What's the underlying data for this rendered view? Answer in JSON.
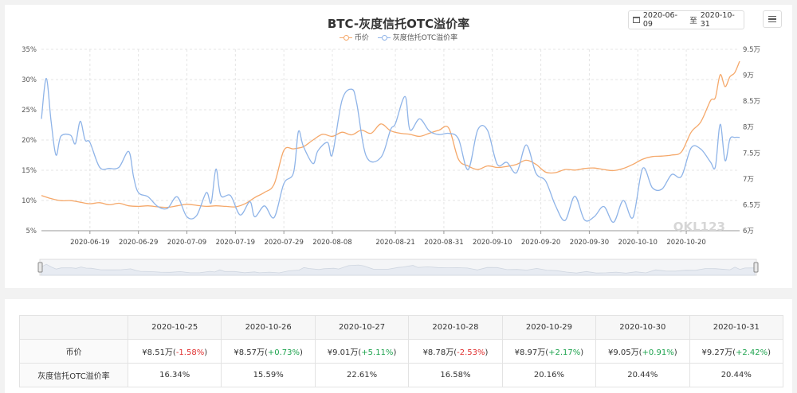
{
  "chart_data": {
    "type": "line",
    "title": "BTC-灰度信托OTC溢价率",
    "date_range": {
      "start": "2020-06-09",
      "separator": "至",
      "end": "2020-10-31"
    },
    "x_ticks": [
      "2020-06-19",
      "2020-06-29",
      "2020-07-09",
      "2020-07-19",
      "2020-07-29",
      "2020-08-08",
      "2020-08-21",
      "2020-08-31",
      "2020-09-10",
      "2020-09-20",
      "2020-09-30",
      "2020-10-10",
      "2020-10-20"
    ],
    "x_range": [
      "2020-06-09",
      "2020-10-31"
    ],
    "y_left": {
      "ticks": [
        "35%",
        "30%",
        "25%",
        "20%",
        "15%",
        "10%",
        "5%"
      ],
      "range": [
        5,
        35
      ],
      "unit": "%"
    },
    "y_right": {
      "ticks": [
        "9.5万",
        "9万",
        "8.5万",
        "8万",
        "7.5万",
        "7万",
        "6.5万",
        "6万"
      ],
      "range": [
        60000,
        95000
      ]
    },
    "grid": true,
    "legend_position": "top",
    "series": [
      {
        "name": "币价",
        "axis": "right",
        "color": "#f5a86a",
        "values": [
          [
            "2020-06-09",
            66800
          ],
          [
            "2020-06-11",
            66200
          ],
          [
            "2020-06-13",
            65800
          ],
          [
            "2020-06-15",
            65800
          ],
          [
            "2020-06-17",
            65500
          ],
          [
            "2020-06-19",
            65200
          ],
          [
            "2020-06-21",
            65400
          ],
          [
            "2020-06-23",
            65000
          ],
          [
            "2020-06-25",
            65300
          ],
          [
            "2020-06-27",
            64800
          ],
          [
            "2020-06-29",
            64700
          ],
          [
            "2020-07-01",
            64800
          ],
          [
            "2020-07-03",
            64600
          ],
          [
            "2020-07-05",
            64500
          ],
          [
            "2020-07-07",
            64800
          ],
          [
            "2020-07-09",
            65100
          ],
          [
            "2020-07-11",
            64900
          ],
          [
            "2020-07-13",
            64700
          ],
          [
            "2020-07-15",
            64800
          ],
          [
            "2020-07-17",
            64700
          ],
          [
            "2020-07-19",
            64600
          ],
          [
            "2020-07-21",
            65200
          ],
          [
            "2020-07-23",
            66400
          ],
          [
            "2020-07-25",
            67400
          ],
          [
            "2020-07-27",
            69000
          ],
          [
            "2020-07-29",
            75500
          ],
          [
            "2020-07-31",
            75800
          ],
          [
            "2020-08-02",
            76200
          ],
          [
            "2020-08-04",
            77500
          ],
          [
            "2020-08-06",
            78600
          ],
          [
            "2020-08-08",
            78200
          ],
          [
            "2020-08-10",
            79000
          ],
          [
            "2020-08-12",
            78500
          ],
          [
            "2020-08-14",
            79400
          ],
          [
            "2020-08-16",
            78800
          ],
          [
            "2020-08-18",
            80600
          ],
          [
            "2020-08-20",
            79300
          ],
          [
            "2020-08-22",
            78800
          ],
          [
            "2020-08-24",
            78600
          ],
          [
            "2020-08-26",
            78200
          ],
          [
            "2020-08-28",
            78800
          ],
          [
            "2020-08-30",
            79400
          ],
          [
            "2020-09-01",
            79800
          ],
          [
            "2020-09-03",
            73800
          ],
          [
            "2020-09-05",
            72500
          ],
          [
            "2020-09-07",
            71800
          ],
          [
            "2020-09-09",
            72500
          ],
          [
            "2020-09-11",
            72200
          ],
          [
            "2020-09-13",
            72400
          ],
          [
            "2020-09-15",
            72800
          ],
          [
            "2020-09-17",
            73600
          ],
          [
            "2020-09-19",
            72800
          ],
          [
            "2020-09-21",
            71300
          ],
          [
            "2020-09-23",
            71200
          ],
          [
            "2020-09-25",
            71800
          ],
          [
            "2020-09-27",
            71700
          ],
          [
            "2020-09-29",
            72000
          ],
          [
            "2020-10-01",
            72100
          ],
          [
            "2020-10-03",
            71800
          ],
          [
            "2020-10-05",
            71600
          ],
          [
            "2020-10-07",
            72000
          ],
          [
            "2020-10-09",
            72800
          ],
          [
            "2020-10-11",
            73800
          ],
          [
            "2020-10-13",
            74300
          ],
          [
            "2020-10-15",
            74400
          ],
          [
            "2020-10-17",
            74600
          ],
          [
            "2020-10-19",
            75200
          ],
          [
            "2020-10-21",
            79000
          ],
          [
            "2020-10-23",
            81000
          ],
          [
            "2020-10-25",
            85100
          ],
          [
            "2020-10-26",
            85700
          ],
          [
            "2020-10-27",
            90100
          ],
          [
            "2020-10-28",
            87800
          ],
          [
            "2020-10-29",
            89700
          ],
          [
            "2020-10-30",
            90500
          ],
          [
            "2020-10-31",
            92700
          ]
        ]
      },
      {
        "name": "灰度信托OTC溢价率",
        "axis": "left",
        "color": "#8fb4e8",
        "values": [
          [
            "2020-06-09",
            23.5
          ],
          [
            "2020-06-10",
            30.2
          ],
          [
            "2020-06-11",
            23.0
          ],
          [
            "2020-06-12",
            17.5
          ],
          [
            "2020-06-13",
            20.6
          ],
          [
            "2020-06-15",
            20.8
          ],
          [
            "2020-06-16",
            19.4
          ],
          [
            "2020-06-17",
            23.1
          ],
          [
            "2020-06-18",
            20.0
          ],
          [
            "2020-06-19",
            19.6
          ],
          [
            "2020-06-21",
            15.5
          ],
          [
            "2020-06-23",
            15.3
          ],
          [
            "2020-06-25",
            15.5
          ],
          [
            "2020-06-27",
            18.1
          ],
          [
            "2020-06-28",
            13.9
          ],
          [
            "2020-06-29",
            11.3
          ],
          [
            "2020-07-01",
            10.6
          ],
          [
            "2020-07-03",
            9.0
          ],
          [
            "2020-07-05",
            8.7
          ],
          [
            "2020-07-07",
            10.6
          ],
          [
            "2020-07-09",
            7.3
          ],
          [
            "2020-07-11",
            7.5
          ],
          [
            "2020-07-13",
            11.3
          ],
          [
            "2020-07-14",
            9.6
          ],
          [
            "2020-07-15",
            15.2
          ],
          [
            "2020-07-16",
            10.8
          ],
          [
            "2020-07-18",
            10.8
          ],
          [
            "2020-07-20",
            7.6
          ],
          [
            "2020-07-22",
            9.8
          ],
          [
            "2020-07-23",
            7.3
          ],
          [
            "2020-07-25",
            9.1
          ],
          [
            "2020-07-27",
            7.2
          ],
          [
            "2020-07-29",
            12.8
          ],
          [
            "2020-07-31",
            14.6
          ],
          [
            "2020-08-01",
            21.4
          ],
          [
            "2020-08-02",
            19.0
          ],
          [
            "2020-08-04",
            16.1
          ],
          [
            "2020-08-05",
            18.2
          ],
          [
            "2020-08-07",
            19.6
          ],
          [
            "2020-08-08",
            17.6
          ],
          [
            "2020-08-10",
            26.6
          ],
          [
            "2020-08-12",
            28.4
          ],
          [
            "2020-08-13",
            26.2
          ],
          [
            "2020-08-15",
            17.3
          ],
          [
            "2020-08-18",
            17.1
          ],
          [
            "2020-08-20",
            21.7
          ],
          [
            "2020-08-21",
            22.7
          ],
          [
            "2020-08-23",
            27.2
          ],
          [
            "2020-08-24",
            21.7
          ],
          [
            "2020-08-26",
            23.5
          ],
          [
            "2020-08-28",
            21.5
          ],
          [
            "2020-08-30",
            20.9
          ],
          [
            "2020-09-01",
            21.1
          ],
          [
            "2020-09-03",
            20.2
          ],
          [
            "2020-09-05",
            15.1
          ],
          [
            "2020-09-07",
            21.7
          ],
          [
            "2020-09-09",
            21.6
          ],
          [
            "2020-09-11",
            16.0
          ],
          [
            "2020-09-13",
            16.3
          ],
          [
            "2020-09-15",
            14.6
          ],
          [
            "2020-09-17",
            19.2
          ],
          [
            "2020-09-19",
            14.5
          ],
          [
            "2020-09-21",
            13.2
          ],
          [
            "2020-09-23",
            9.2
          ],
          [
            "2020-09-25",
            6.7
          ],
          [
            "2020-09-27",
            10.7
          ],
          [
            "2020-09-29",
            6.8
          ],
          [
            "2020-10-01",
            7.3
          ],
          [
            "2020-10-03",
            9.0
          ],
          [
            "2020-10-05",
            6.4
          ],
          [
            "2020-10-07",
            10.0
          ],
          [
            "2020-10-09",
            7.2
          ],
          [
            "2020-10-11",
            15.3
          ],
          [
            "2020-10-13",
            12.1
          ],
          [
            "2020-10-15",
            11.9
          ],
          [
            "2020-10-17",
            14.3
          ],
          [
            "2020-10-19",
            14.0
          ],
          [
            "2020-10-21",
            18.7
          ],
          [
            "2020-10-23",
            18.5
          ],
          [
            "2020-10-25",
            16.34
          ],
          [
            "2020-10-26",
            15.59
          ],
          [
            "2020-10-27",
            22.61
          ],
          [
            "2020-10-28",
            16.58
          ],
          [
            "2020-10-29",
            20.16
          ],
          [
            "2020-10-30",
            20.44
          ],
          [
            "2020-10-31",
            20.44
          ]
        ]
      }
    ]
  },
  "watermark": "QKL123",
  "table": {
    "corner": "",
    "dates": [
      "2020-10-25",
      "2020-10-26",
      "2020-10-27",
      "2020-10-28",
      "2020-10-29",
      "2020-10-30",
      "2020-10-31"
    ],
    "rows": [
      {
        "label": "币价",
        "cells": [
          {
            "price": "¥8.51万(",
            "change": "-1.58%",
            "close": ")",
            "dir": "neg"
          },
          {
            "price": "¥8.57万(",
            "change": "+0.73%",
            "close": ")",
            "dir": "pos"
          },
          {
            "price": "¥9.01万(",
            "change": "+5.11%",
            "close": ")",
            "dir": "pos"
          },
          {
            "price": "¥8.78万(",
            "change": "-2.53%",
            "close": ")",
            "dir": "neg"
          },
          {
            "price": "¥8.97万(",
            "change": "+2.17%",
            "close": ")",
            "dir": "pos"
          },
          {
            "price": "¥9.05万(",
            "change": "+0.91%",
            "close": ")",
            "dir": "pos"
          },
          {
            "price": "¥9.27万(",
            "change": "+2.42%",
            "close": ")",
            "dir": "pos"
          }
        ]
      },
      {
        "label": "灰度信托OTC溢价率",
        "cells": [
          "16.34%",
          "15.59%",
          "22.61%",
          "16.58%",
          "20.16%",
          "20.44%",
          "20.44%"
        ]
      }
    ]
  }
}
